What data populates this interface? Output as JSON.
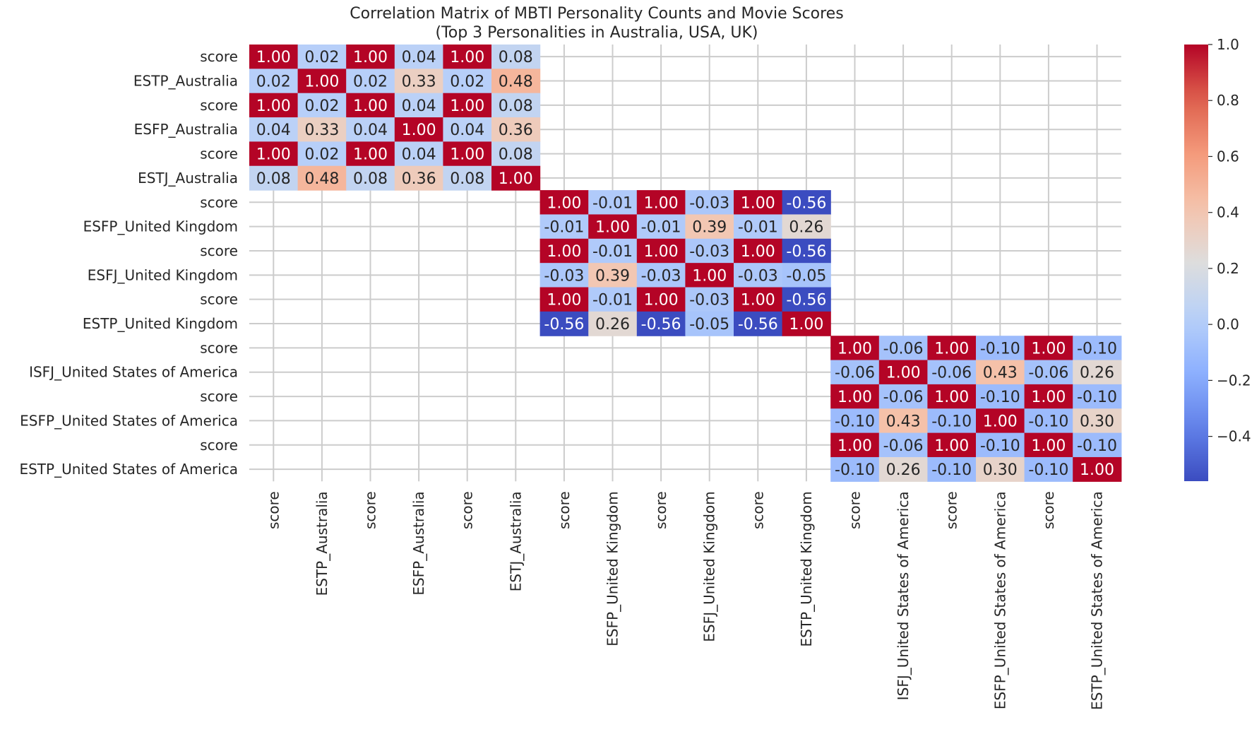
{
  "chart_data": {
    "type": "heatmap",
    "title_line1": "Correlation Matrix of MBTI Personality Counts and Movie Scores",
    "title_line2": "(Top 3 Personalities in Australia, USA, UK)",
    "row_labels": [
      "score",
      "ESTP_Australia",
      "score",
      "ESFP_Australia",
      "score",
      "ESTJ_Australia",
      "score",
      "ESFP_United Kingdom",
      "score",
      "ESFJ_United Kingdom",
      "score",
      "ESTP_United Kingdom",
      "score",
      "ISFJ_United States of America",
      "score",
      "ESFP_United States of America",
      "score",
      "ESTP_United States of America"
    ],
    "col_labels": [
      "score",
      "ESTP_Australia",
      "score",
      "ESFP_Australia",
      "score",
      "ESTJ_Australia",
      "score",
      "ESFP_United Kingdom",
      "score",
      "ESFJ_United Kingdom",
      "score",
      "ESTP_United Kingdom",
      "score",
      "ISFJ_United States of America",
      "score",
      "ESFP_United States of America",
      "score",
      "ESTP_United States of America"
    ],
    "values": [
      [
        1.0,
        0.02,
        1.0,
        0.04,
        1.0,
        0.08,
        null,
        null,
        null,
        null,
        null,
        null,
        null,
        null,
        null,
        null,
        null,
        null
      ],
      [
        0.02,
        1.0,
        0.02,
        0.33,
        0.02,
        0.48,
        null,
        null,
        null,
        null,
        null,
        null,
        null,
        null,
        null,
        null,
        null,
        null
      ],
      [
        1.0,
        0.02,
        1.0,
        0.04,
        1.0,
        0.08,
        null,
        null,
        null,
        null,
        null,
        null,
        null,
        null,
        null,
        null,
        null,
        null
      ],
      [
        0.04,
        0.33,
        0.04,
        1.0,
        0.04,
        0.36,
        null,
        null,
        null,
        null,
        null,
        null,
        null,
        null,
        null,
        null,
        null,
        null
      ],
      [
        1.0,
        0.02,
        1.0,
        0.04,
        1.0,
        0.08,
        null,
        null,
        null,
        null,
        null,
        null,
        null,
        null,
        null,
        null,
        null,
        null
      ],
      [
        0.08,
        0.48,
        0.08,
        0.36,
        0.08,
        1.0,
        null,
        null,
        null,
        null,
        null,
        null,
        null,
        null,
        null,
        null,
        null,
        null
      ],
      [
        null,
        null,
        null,
        null,
        null,
        null,
        1.0,
        -0.01,
        1.0,
        -0.03,
        1.0,
        -0.56,
        null,
        null,
        null,
        null,
        null,
        null
      ],
      [
        null,
        null,
        null,
        null,
        null,
        null,
        -0.01,
        1.0,
        -0.01,
        0.39,
        -0.01,
        0.26,
        null,
        null,
        null,
        null,
        null,
        null
      ],
      [
        null,
        null,
        null,
        null,
        null,
        null,
        1.0,
        -0.01,
        1.0,
        -0.03,
        1.0,
        -0.56,
        null,
        null,
        null,
        null,
        null,
        null
      ],
      [
        null,
        null,
        null,
        null,
        null,
        null,
        -0.03,
        0.39,
        -0.03,
        1.0,
        -0.03,
        -0.05,
        null,
        null,
        null,
        null,
        null,
        null
      ],
      [
        null,
        null,
        null,
        null,
        null,
        null,
        1.0,
        -0.01,
        1.0,
        -0.03,
        1.0,
        -0.56,
        null,
        null,
        null,
        null,
        null,
        null
      ],
      [
        null,
        null,
        null,
        null,
        null,
        null,
        -0.56,
        0.26,
        -0.56,
        -0.05,
        -0.56,
        1.0,
        null,
        null,
        null,
        null,
        null,
        null
      ],
      [
        null,
        null,
        null,
        null,
        null,
        null,
        null,
        null,
        null,
        null,
        null,
        null,
        1.0,
        -0.06,
        1.0,
        -0.1,
        1.0,
        -0.1
      ],
      [
        null,
        null,
        null,
        null,
        null,
        null,
        null,
        null,
        null,
        null,
        null,
        null,
        -0.06,
        1.0,
        -0.06,
        0.43,
        -0.06,
        0.26
      ],
      [
        null,
        null,
        null,
        null,
        null,
        null,
        null,
        null,
        null,
        null,
        null,
        null,
        1.0,
        -0.06,
        1.0,
        -0.1,
        1.0,
        -0.1
      ],
      [
        null,
        null,
        null,
        null,
        null,
        null,
        null,
        null,
        null,
        null,
        null,
        null,
        -0.1,
        0.43,
        -0.1,
        1.0,
        -0.1,
        0.3
      ],
      [
        null,
        null,
        null,
        null,
        null,
        null,
        null,
        null,
        null,
        null,
        null,
        null,
        1.0,
        -0.06,
        1.0,
        -0.1,
        1.0,
        -0.1
      ],
      [
        null,
        null,
        null,
        null,
        null,
        null,
        null,
        null,
        null,
        null,
        null,
        null,
        -0.1,
        0.26,
        -0.1,
        0.3,
        -0.1,
        1.0
      ]
    ],
    "value_format": "2 decimals",
    "colormap": "coolwarm",
    "vmin": -0.56,
    "vmax": 1.0,
    "colorbar_ticks": [
      "1.0",
      "0.8",
      "0.6",
      "0.4",
      "0.2",
      "0.0",
      "−0.2",
      "−0.4"
    ],
    "colorbar_tick_values": [
      1.0,
      0.8,
      0.6,
      0.4,
      0.2,
      0.0,
      -0.2,
      -0.4
    ],
    "grid": true,
    "colors": {
      "grid": "#cccccc",
      "text_dark": "#262626",
      "text_light": "#ffffff"
    }
  }
}
